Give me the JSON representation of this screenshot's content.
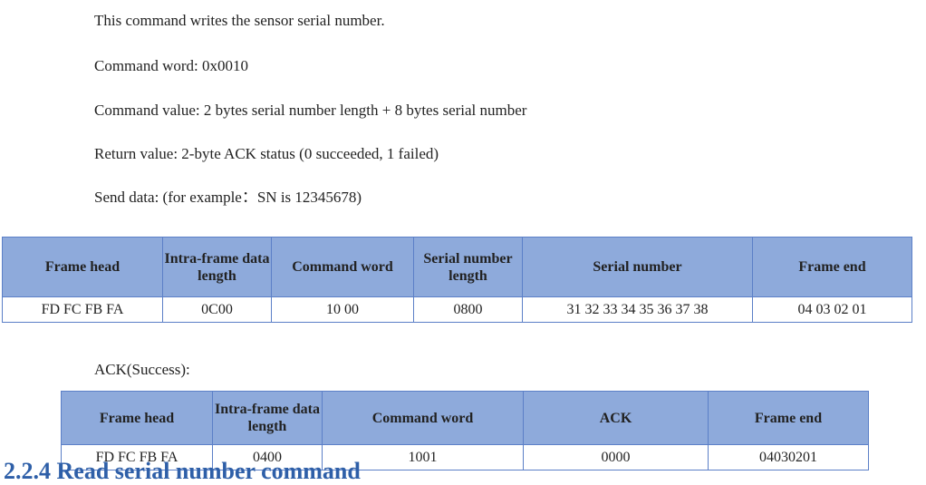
{
  "paragraphs": {
    "intro": "This command writes the sensor serial number.",
    "command_word": "Command word: 0x0010",
    "command_value": "Command value: 2 bytes serial number length + 8 bytes serial number",
    "return_value": "Return value: 2-byte ACK status (0 succeeded, 1 failed)",
    "send_data": "Send data: (for example：SN is 12345678)"
  },
  "send_table": {
    "headers": [
      "Frame head",
      "Intra-frame data length",
      "Command word",
      "Serial number length",
      "Serial number",
      "Frame end"
    ],
    "row": [
      "FD FC FB FA",
      "0C00",
      "10 00",
      "0800",
      "31 32 33 34 35 36 37 38",
      "04 03 02 01"
    ]
  },
  "ack_label": "ACK(Success):",
  "ack_table": {
    "headers": [
      "Frame head",
      "Intra-frame data length",
      "Command word",
      "ACK",
      "Frame end"
    ],
    "row": [
      "FD FC FB FA",
      "0400",
      "1001",
      "0000",
      "04030201"
    ]
  },
  "next_heading": "2.2.4 Read serial number command"
}
